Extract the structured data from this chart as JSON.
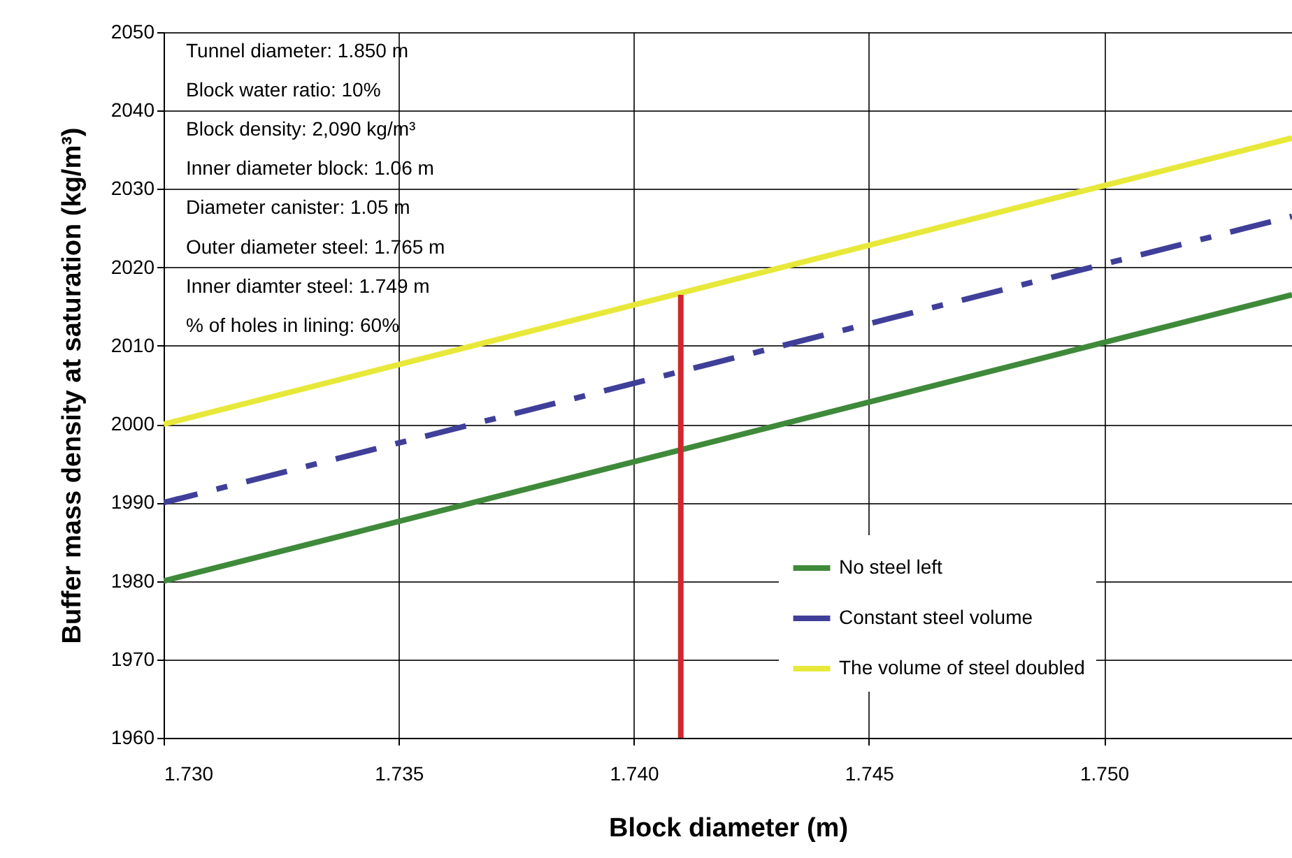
{
  "chart_data": {
    "type": "line",
    "xlabel": "Block diameter (m)",
    "ylabel": "Buffer mass density at saturation (kg/m³)",
    "xlim": [
      1.73,
      1.754
    ],
    "ylim": [
      1960,
      2050
    ],
    "xticks": [
      {
        "value": 1.73,
        "label": "1.730"
      },
      {
        "value": 1.735,
        "label": "1.735"
      },
      {
        "value": 1.74,
        "label": "1.740"
      },
      {
        "value": 1.745,
        "label": "1.745"
      },
      {
        "value": 1.75,
        "label": "1.750"
      }
    ],
    "yticks": [
      1960,
      1970,
      1980,
      1990,
      2000,
      2010,
      2020,
      2030,
      2040,
      2050
    ],
    "grid": true,
    "legend": "bottom right",
    "annotations": [
      "Tunnel diameter: 1.850 m",
      "Block water ratio: 10%",
      "Block density: 2,090 kg/m³",
      "Inner diameter block: 1.06 m",
      "Diameter canister: 1.05 m",
      "Outer diameter steel: 1.765 m",
      "Inner diamter steel: 1.749 m",
      "% of holes in lining: 60%"
    ],
    "series": [
      {
        "name": "No steel left",
        "color": "#3f8a3a",
        "line_style": "solid",
        "x": [
          1.73,
          1.754
        ],
        "values": [
          1980,
          2016.5
        ]
      },
      {
        "name": "Constant steel volume",
        "color": "#3f3f9a",
        "line_style": "dashdot",
        "x": [
          1.73,
          1.754
        ],
        "values": [
          1990,
          2026.5
        ]
      },
      {
        "name": "The volume of steel doubled",
        "color": "#e8e83a",
        "line_style": "solid",
        "x": [
          1.73,
          1.754
        ],
        "values": [
          2000,
          2036.5
        ]
      },
      {
        "color": "#d0282e",
        "line_style": "solid",
        "x": [
          1.741,
          1.741
        ],
        "values": [
          1960,
          2016.5
        ]
      }
    ]
  }
}
